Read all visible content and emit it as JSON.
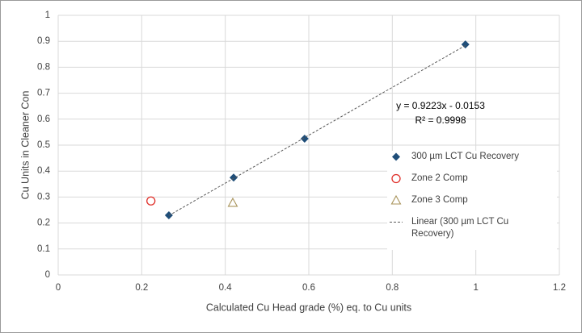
{
  "chart_data": {
    "type": "scatter",
    "xlabel": "Calculated Cu Head grade (%) eq. to Cu units",
    "ylabel": "Cu Units in Cleaner Con",
    "xlim": [
      0,
      1.2
    ],
    "ylim": [
      0,
      1
    ],
    "xticks": [
      0,
      0.2,
      0.4,
      0.6,
      0.8,
      1,
      1.2
    ],
    "yticks": [
      0,
      0.1,
      0.2,
      0.3,
      0.4,
      0.5,
      0.6,
      0.7,
      0.8,
      0.9,
      1
    ],
    "grid": true,
    "legend": "right",
    "series": [
      {
        "name": "300 µm LCT Cu Recovery",
        "marker": "diamond",
        "color": "#1f4e79",
        "x": [
          0.265,
          0.42,
          0.59,
          0.975
        ],
        "values": [
          0.23,
          0.375,
          0.525,
          0.888
        ]
      },
      {
        "name": "Zone 2 Comp",
        "marker": "circle",
        "color": "#e0312b",
        "x": [
          0.222
        ],
        "values": [
          0.285
        ]
      },
      {
        "name": "Zone 3 Comp",
        "marker": "triangle",
        "color": "#a8935a",
        "x": [
          0.418
        ],
        "values": [
          0.278
        ]
      },
      {
        "name": "Linear (300 µm LCT Cu Recovery)",
        "marker": "dashed-line",
        "color": "#595959",
        "x": [
          0.265,
          0.975
        ],
        "values": [
          0.229,
          0.884
        ]
      }
    ],
    "annotations": [
      "y = 0.9223x - 0.0153",
      "R² = 0.9998"
    ]
  }
}
